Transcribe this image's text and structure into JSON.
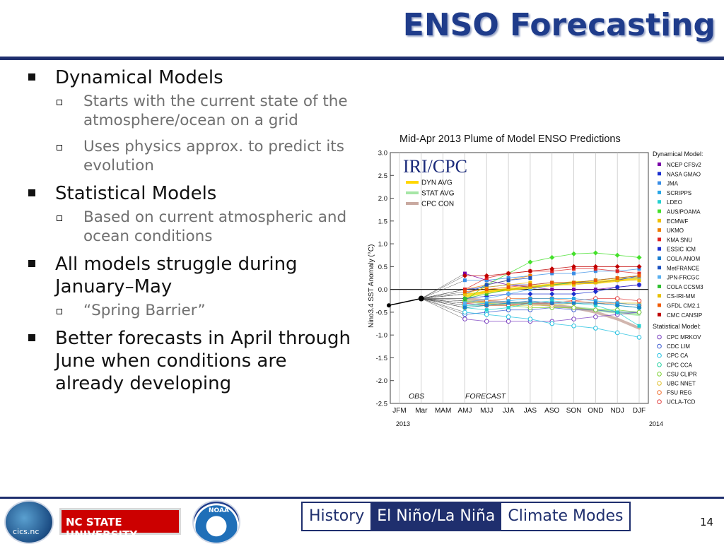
{
  "slide": {
    "title": "ENSO Forecasting",
    "page_number": "14"
  },
  "bullets": [
    {
      "text": "Dynamical Models",
      "sub": [
        "Starts with the current state of the atmosphere/ocean on a grid",
        "Uses physics approx. to predict its evolution"
      ]
    },
    {
      "text": "Statistical Models",
      "sub": [
        "Based on current atmospheric and ocean conditions"
      ]
    },
    {
      "text": "All models struggle during January–May",
      "sub": [
        "“Spring Barrier”"
      ]
    },
    {
      "text": "Better forecasts in April through June when conditions are already developing",
      "sub": []
    }
  ],
  "footer": {
    "logo1_text": "cics.nc",
    "ncstate_text": "NC STATE UNIVERSITY",
    "noaa_text": "NOAA",
    "nav": [
      {
        "label": "History",
        "active": false
      },
      {
        "label": "El Niño/La Niña",
        "active": true
      },
      {
        "label": "Climate Modes",
        "active": false
      }
    ]
  },
  "chart_data": {
    "type": "line",
    "title": "Mid-Apr 2013 Plume of Model ENSO Predictions",
    "ylabel": "Nino3.4 SST Anomaly (°C)",
    "x": [
      "JFM",
      "Mar",
      "MAM",
      "AMJ",
      "MJJ",
      "JJA",
      "JAS",
      "ASO",
      "SON",
      "OND",
      "NDJ",
      "DJF"
    ],
    "year_labels": {
      "start": "2013",
      "end": "2014"
    },
    "ylim": [
      -2.5,
      3.0
    ],
    "yticks": [
      3.0,
      2.5,
      2.0,
      1.5,
      1.0,
      0.5,
      0.0,
      -0.5,
      -1.0,
      -1.5,
      -2.0,
      -2.5
    ],
    "logo_text": "IRI/CPC",
    "text_labels": {
      "obs": "OBS",
      "forecast": "FORECAST"
    },
    "averages": [
      {
        "name": "DYN AVG",
        "color": "#ffd700",
        "values": [
          null,
          null,
          null,
          -0.15,
          -0.05,
          0.0,
          0.05,
          0.1,
          0.15,
          0.15,
          0.2,
          0.25
        ]
      },
      {
        "name": "STAT AVG",
        "color": "#a6e6a6",
        "values": [
          null,
          null,
          null,
          -0.25,
          -0.3,
          -0.3,
          -0.3,
          -0.35,
          -0.4,
          -0.45,
          -0.5,
          -0.55
        ]
      },
      {
        "name": "CPC CON",
        "color": "#c9a9a0",
        "values": [
          null,
          null,
          null,
          -0.2,
          -0.25,
          -0.3,
          -0.3,
          -0.35,
          -0.4,
          -0.5,
          -0.65,
          -0.85
        ]
      }
    ],
    "observations": {
      "name": "OBS",
      "values": [
        -0.35,
        -0.2
      ]
    },
    "legend_dynamical_header": "Dynamical Model:",
    "legend_statistical_header": "Statistical Model:",
    "dynamical_models": [
      {
        "name": "NCEP CFSv2",
        "color": "#7a00a8",
        "values": [
          0.35,
          0.2,
          0.1,
          0.05,
          0.0,
          0.0,
          0.0,
          0.05,
          0.1
        ]
      },
      {
        "name": "NASA GMAO",
        "color": "#1a2fd0",
        "values": [
          0.0,
          0.05,
          0.1,
          0.1,
          0.15,
          0.15,
          0.15,
          0.2,
          0.3
        ]
      },
      {
        "name": "JMA",
        "color": "#3a8ee6",
        "values": [
          0.2,
          0.2,
          0.25,
          0.3,
          0.35,
          0.35,
          0.4,
          0.4,
          0.45
        ]
      },
      {
        "name": "SCRIPPS",
        "color": "#2aa6e6",
        "values": [
          -0.35,
          -0.3,
          -0.25,
          -0.2,
          -0.2,
          -0.2,
          -0.25,
          -0.3,
          -0.35
        ]
      },
      {
        "name": "LDEO",
        "color": "#22d0d0",
        "values": [
          -0.4,
          -0.45,
          -0.4,
          -0.3,
          -0.25,
          -0.3,
          -0.35,
          -0.5,
          -0.8
        ]
      },
      {
        "name": "AUS/POAMA",
        "color": "#44e02a",
        "values": [
          -0.25,
          0.1,
          0.35,
          0.6,
          0.7,
          0.78,
          0.8,
          0.75,
          0.7
        ]
      },
      {
        "name": "ECMWF",
        "color": "#f0c000",
        "values": [
          -0.1,
          0.05,
          0.1,
          0.15,
          null,
          null,
          null,
          null,
          null
        ]
      },
      {
        "name": "UKMO",
        "color": "#f07d00",
        "values": [
          0.0,
          0.1,
          0.2,
          0.3,
          null,
          null,
          null,
          null,
          null
        ]
      },
      {
        "name": "KMA SNU",
        "color": "#e02020",
        "values": [
          0.0,
          0.25,
          0.35,
          0.4,
          0.4,
          0.45,
          0.45,
          0.4,
          0.35
        ]
      },
      {
        "name": "ESSIC ICM",
        "color": "#1a2fd0",
        "values": [
          -0.2,
          -0.15,
          -0.1,
          -0.1,
          -0.1,
          -0.1,
          -0.05,
          0.05,
          0.1
        ]
      },
      {
        "name": "COLA ANOM",
        "color": "#1a7fd0",
        "values": [
          -0.4,
          -0.35,
          -0.3,
          -0.25,
          -0.3,
          -0.3,
          -0.3,
          -0.35,
          -0.4
        ]
      },
      {
        "name": "MetFRANCE",
        "color": "#1a50c0",
        "values": [
          -0.1,
          0.1,
          0.2,
          0.25,
          null,
          null,
          null,
          null,
          null
        ]
      },
      {
        "name": "JPN-FRCGC",
        "color": "#5ab0f0",
        "values": [
          -0.3,
          -0.2,
          -0.1,
          0.0,
          0.1,
          0.15,
          0.2,
          0.25,
          0.25
        ]
      },
      {
        "name": "COLA CCSM3",
        "color": "#30c030",
        "values": [
          -0.2,
          -0.1,
          0.0,
          0.05,
          0.1,
          0.15,
          0.2,
          0.25,
          0.3
        ]
      },
      {
        "name": "CS-IRI-MM",
        "color": "#e8c000",
        "values": [
          -0.1,
          -0.05,
          0.0,
          0.05,
          0.1,
          0.1,
          0.15,
          0.2,
          0.2
        ]
      },
      {
        "name": "GFDL CM2.1",
        "color": "#f05a00",
        "values": [
          -0.05,
          0.0,
          0.05,
          0.1,
          0.15,
          0.15,
          0.2,
          0.25,
          0.3
        ]
      },
      {
        "name": "CMC CANSIP",
        "color": "#c00000",
        "values": [
          0.3,
          0.3,
          0.35,
          0.4,
          0.45,
          0.5,
          0.5,
          0.5,
          0.5
        ]
      }
    ],
    "statistical_models": [
      {
        "name": "CPC MRKOV",
        "color": "#7a40c0",
        "values": [
          -0.65,
          -0.7,
          -0.7,
          -0.7,
          -0.7,
          -0.65,
          -0.6,
          -0.55,
          -0.5
        ]
      },
      {
        "name": "CDC LIM",
        "color": "#3a5ad0",
        "values": [
          -0.55,
          -0.5,
          -0.45,
          -0.45,
          -0.4,
          -0.45,
          -0.45,
          -0.5,
          -0.5
        ]
      },
      {
        "name": "CPC CA",
        "color": "#22c0e0",
        "values": [
          -0.5,
          -0.55,
          -0.6,
          -0.65,
          -0.75,
          -0.8,
          -0.85,
          -0.95,
          -1.05
        ]
      },
      {
        "name": "CPC CCA",
        "color": "#22d0a0",
        "values": [
          -0.35,
          -0.35,
          -0.3,
          -0.3,
          -0.3,
          -0.3,
          -0.3,
          -0.35,
          -0.4
        ]
      },
      {
        "name": "CSU CLIPR",
        "color": "#7ad030",
        "values": [
          -0.4,
          -0.35,
          -0.35,
          -0.4,
          -0.4,
          -0.4,
          -0.45,
          -0.45,
          -0.5
        ]
      },
      {
        "name": "UBC NNET",
        "color": "#e0c030",
        "values": [
          -0.25,
          -0.3,
          -0.35,
          -0.35,
          -0.35,
          -0.3,
          -0.3,
          -0.3,
          -0.3
        ]
      },
      {
        "name": "FSU REG",
        "color": "#f07030",
        "values": [
          -0.3,
          -0.25,
          -0.2,
          -0.2,
          -0.2,
          -0.25,
          -0.3,
          -0.3,
          -0.35
        ]
      },
      {
        "name": "UCLA-TCD",
        "color": "#e04040",
        "values": [
          -0.3,
          -0.35,
          -0.35,
          -0.3,
          -0.3,
          -0.25,
          -0.2,
          -0.2,
          -0.25
        ]
      }
    ]
  }
}
